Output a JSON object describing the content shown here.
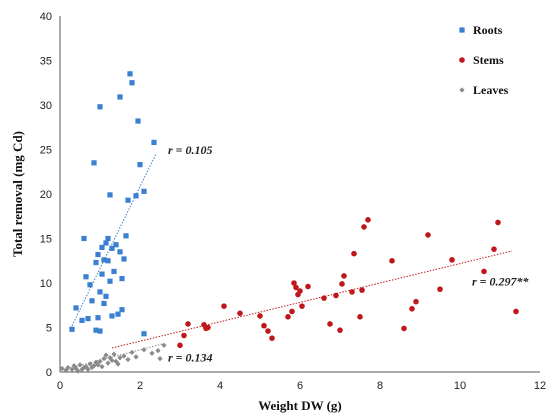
{
  "chart_data": {
    "type": "scatter",
    "xlabel": "Weight DW (g)",
    "ylabel": "Total removal (mg Cd)",
    "xlim": [
      0,
      12
    ],
    "ylim": [
      0,
      40
    ],
    "x_ticks": [
      "0",
      "2",
      "4",
      "6",
      "8",
      "10",
      "12"
    ],
    "y_ticks": [
      "0",
      "5",
      "10",
      "15",
      "20",
      "25",
      "30",
      "35",
      "40"
    ],
    "grid": false,
    "legend_position": "top-right",
    "series": [
      {
        "name": "Roots",
        "color": "#3b7fd0",
        "marker": "square",
        "trendline": {
          "from": [
            0.3,
            5.2
          ],
          "to": [
            2.4,
            24.5
          ],
          "label": "r = 0.105",
          "label_at": [
            2.7,
            24.5
          ]
        },
        "points": [
          [
            0.3,
            4.8
          ],
          [
            0.4,
            7.2
          ],
          [
            0.55,
            5.8
          ],
          [
            0.6,
            15.0
          ],
          [
            0.65,
            10.7
          ],
          [
            0.7,
            6.0
          ],
          [
            0.75,
            9.8
          ],
          [
            0.8,
            8.0
          ],
          [
            0.85,
            23.5
          ],
          [
            0.9,
            12.3
          ],
          [
            0.9,
            4.7
          ],
          [
            0.95,
            6.1
          ],
          [
            0.95,
            13.2
          ],
          [
            1.0,
            9.0
          ],
          [
            1.0,
            4.6
          ],
          [
            1.0,
            29.8
          ],
          [
            1.05,
            14.0
          ],
          [
            1.05,
            11.0
          ],
          [
            1.1,
            12.6
          ],
          [
            1.1,
            7.7
          ],
          [
            1.15,
            8.5
          ],
          [
            1.15,
            14.5
          ],
          [
            1.2,
            12.5
          ],
          [
            1.2,
            15.0
          ],
          [
            1.25,
            19.9
          ],
          [
            1.25,
            10.2
          ],
          [
            1.3,
            6.3
          ],
          [
            1.3,
            13.9
          ],
          [
            1.35,
            11.3
          ],
          [
            1.4,
            14.3
          ],
          [
            1.45,
            6.5
          ],
          [
            1.5,
            13.5
          ],
          [
            1.5,
            30.9
          ],
          [
            1.55,
            10.5
          ],
          [
            1.55,
            7.0
          ],
          [
            1.6,
            12.7
          ],
          [
            1.65,
            15.3
          ],
          [
            1.7,
            19.3
          ],
          [
            1.75,
            33.5
          ],
          [
            1.8,
            32.5
          ],
          [
            1.9,
            19.8
          ],
          [
            1.95,
            28.2
          ],
          [
            2.0,
            23.3
          ],
          [
            2.1,
            4.3
          ],
          [
            2.1,
            20.3
          ],
          [
            2.35,
            25.8
          ]
        ]
      },
      {
        "name": "Stems",
        "color": "#c0171c",
        "marker": "circle",
        "trendline": {
          "from": [
            1.3,
            2.7
          ],
          "to": [
            11.3,
            13.6
          ],
          "label": "r = 0.297**",
          "label_at": [
            10.3,
            9.7
          ]
        },
        "points": [
          [
            3.0,
            3.0
          ],
          [
            3.1,
            4.1
          ],
          [
            3.2,
            5.4
          ],
          [
            3.6,
            5.3
          ],
          [
            3.65,
            4.9
          ],
          [
            3.7,
            5.0
          ],
          [
            4.1,
            7.4
          ],
          [
            4.5,
            6.6
          ],
          [
            5.0,
            6.3
          ],
          [
            5.1,
            5.2
          ],
          [
            5.2,
            4.6
          ],
          [
            5.3,
            3.8
          ],
          [
            5.7,
            6.2
          ],
          [
            5.8,
            6.8
          ],
          [
            5.85,
            10.0
          ],
          [
            5.9,
            9.5
          ],
          [
            5.95,
            8.7
          ],
          [
            6.0,
            9.1
          ],
          [
            6.05,
            7.4
          ],
          [
            6.2,
            9.6
          ],
          [
            6.6,
            8.3
          ],
          [
            6.75,
            5.4
          ],
          [
            6.9,
            8.6
          ],
          [
            7.0,
            4.7
          ],
          [
            7.05,
            9.9
          ],
          [
            7.1,
            10.8
          ],
          [
            7.3,
            9.0
          ],
          [
            7.35,
            13.3
          ],
          [
            7.5,
            6.2
          ],
          [
            7.55,
            9.2
          ],
          [
            7.6,
            16.3
          ],
          [
            7.7,
            17.1
          ],
          [
            8.3,
            12.5
          ],
          [
            8.6,
            4.9
          ],
          [
            8.8,
            7.1
          ],
          [
            8.9,
            7.9
          ],
          [
            9.2,
            15.4
          ],
          [
            9.5,
            9.3
          ],
          [
            9.8,
            12.6
          ],
          [
            10.6,
            11.3
          ],
          [
            10.85,
            13.8
          ],
          [
            10.95,
            16.8
          ],
          [
            11.4,
            6.8
          ]
        ]
      },
      {
        "name": "Leaves",
        "color": "#8a8a8a",
        "marker": "diamond",
        "trendline": {
          "from": [
            0.05,
            0.2
          ],
          "to": [
            2.6,
            3.2
          ],
          "label": "r = 0.134",
          "label_at": [
            2.7,
            1.2
          ]
        },
        "points": [
          [
            0.05,
            0.4
          ],
          [
            0.15,
            0.2
          ],
          [
            0.2,
            0.5
          ],
          [
            0.3,
            0.3
          ],
          [
            0.35,
            0.7
          ],
          [
            0.4,
            0.4
          ],
          [
            0.45,
            0.1
          ],
          [
            0.5,
            0.8
          ],
          [
            0.55,
            0.3
          ],
          [
            0.6,
            0.5
          ],
          [
            0.65,
            0.6
          ],
          [
            0.7,
            0.3
          ],
          [
            0.75,
            0.9
          ],
          [
            0.8,
            0.5
          ],
          [
            0.85,
            0.7
          ],
          [
            0.9,
            1.1
          ],
          [
            0.95,
            0.8
          ],
          [
            1.0,
            1.2
          ],
          [
            1.05,
            0.6
          ],
          [
            1.1,
            1.5
          ],
          [
            1.15,
            1.9
          ],
          [
            1.2,
            1.0
          ],
          [
            1.25,
            1.6
          ],
          [
            1.3,
            1.3
          ],
          [
            1.35,
            2.0
          ],
          [
            1.4,
            1.2
          ],
          [
            1.45,
            0.9
          ],
          [
            1.5,
            1.6
          ],
          [
            1.6,
            1.8
          ],
          [
            1.7,
            1.4
          ],
          [
            1.8,
            2.2
          ],
          [
            1.9,
            1.7
          ],
          [
            2.1,
            2.5
          ],
          [
            2.3,
            2.1
          ],
          [
            2.45,
            2.4
          ],
          [
            2.5,
            1.5
          ],
          [
            2.6,
            3.0
          ]
        ]
      }
    ]
  }
}
